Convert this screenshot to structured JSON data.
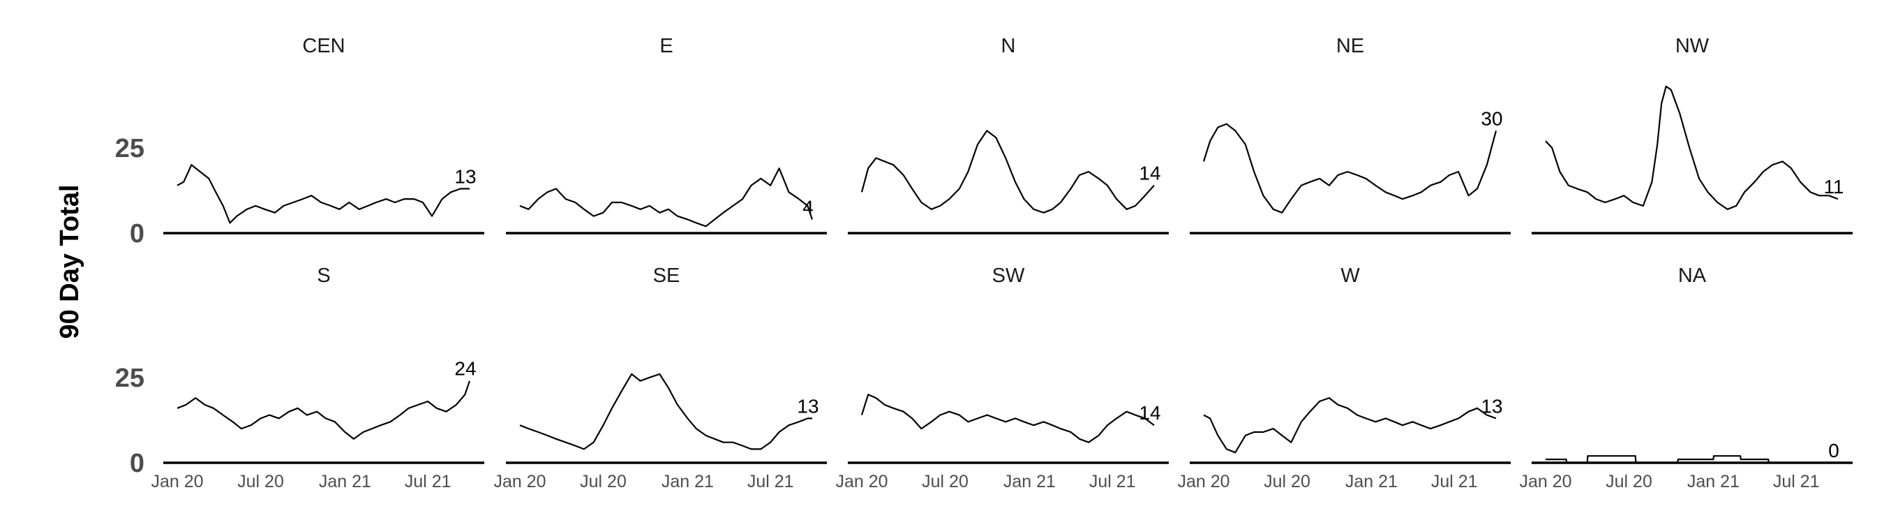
{
  "chart_data": {
    "type": "line",
    "ylabel": "90 Day Total",
    "ylim": [
      0,
      45
    ],
    "yticks": [
      0,
      25
    ],
    "xlim": [
      "2020-01-01",
      "2021-11-01"
    ],
    "xticks": [
      "2020-01-01",
      "2020-07-01",
      "2021-01-01",
      "2021-07-01"
    ],
    "xtick_labels": [
      "Jan 20",
      "Jul 20",
      "Jan 21",
      "Jul 21"
    ],
    "grid": false,
    "colors": {
      "line": "#000000",
      "text": "#4d4d4d"
    },
    "panels": [
      {
        "name": "CEN",
        "end_label": "13",
        "x": [
          "2020-01-01",
          "2020-01-15",
          "2020-02-01",
          "2020-02-20",
          "2020-03-10",
          "2020-03-25",
          "2020-04-10",
          "2020-04-25",
          "2020-05-10",
          "2020-06-01",
          "2020-06-20",
          "2020-07-10",
          "2020-08-01",
          "2020-08-20",
          "2020-09-10",
          "2020-10-01",
          "2020-10-20",
          "2020-11-10",
          "2020-12-01",
          "2020-12-20",
          "2021-01-10",
          "2021-02-01",
          "2021-02-20",
          "2021-03-10",
          "2021-04-01",
          "2021-04-20",
          "2021-05-10",
          "2021-06-01",
          "2021-06-20",
          "2021-07-10",
          "2021-08-01",
          "2021-08-20",
          "2021-09-10",
          "2021-09-30"
        ],
        "y": [
          14,
          15,
          20,
          18,
          16,
          12,
          8,
          3,
          5,
          7,
          8,
          7,
          6,
          8,
          9,
          10,
          11,
          9,
          8,
          7,
          9,
          7,
          8,
          9,
          10,
          9,
          10,
          10,
          9,
          5,
          10,
          12,
          13,
          13
        ]
      },
      {
        "name": "E",
        "end_label": "4",
        "x": [
          "2020-01-01",
          "2020-01-20",
          "2020-02-10",
          "2020-03-01",
          "2020-03-20",
          "2020-04-10",
          "2020-05-01",
          "2020-05-20",
          "2020-06-10",
          "2020-07-01",
          "2020-07-20",
          "2020-08-10",
          "2020-09-01",
          "2020-09-20",
          "2020-10-10",
          "2020-11-01",
          "2020-11-20",
          "2020-12-10",
          "2021-01-01",
          "2021-01-20",
          "2021-02-10",
          "2021-03-01",
          "2021-03-20",
          "2021-04-10",
          "2021-05-01",
          "2021-05-20",
          "2021-06-10",
          "2021-07-01",
          "2021-07-20",
          "2021-08-10",
          "2021-09-01",
          "2021-09-20",
          "2021-09-30"
        ],
        "y": [
          8,
          7,
          10,
          12,
          13,
          10,
          9,
          7,
          5,
          6,
          9,
          9,
          8,
          7,
          8,
          6,
          7,
          5,
          4,
          3,
          2,
          4,
          6,
          8,
          10,
          14,
          16,
          14,
          19,
          12,
          10,
          8,
          4
        ]
      },
      {
        "name": "N",
        "end_label": "14",
        "x": [
          "2020-01-01",
          "2020-01-15",
          "2020-02-01",
          "2020-02-20",
          "2020-03-10",
          "2020-04-01",
          "2020-04-20",
          "2020-05-10",
          "2020-06-01",
          "2020-06-20",
          "2020-07-10",
          "2020-08-01",
          "2020-08-20",
          "2020-09-10",
          "2020-09-30",
          "2020-10-20",
          "2020-11-10",
          "2020-12-01",
          "2020-12-20",
          "2021-01-10",
          "2021-02-01",
          "2021-02-20",
          "2021-03-10",
          "2021-04-01",
          "2021-04-20",
          "2021-05-10",
          "2021-06-01",
          "2021-06-20",
          "2021-07-10",
          "2021-08-01",
          "2021-08-20",
          "2021-09-10",
          "2021-09-30"
        ],
        "y": [
          12,
          19,
          22,
          21,
          20,
          17,
          13,
          9,
          7,
          8,
          10,
          13,
          18,
          26,
          30,
          28,
          22,
          15,
          10,
          7,
          6,
          7,
          9,
          13,
          17,
          18,
          16,
          14,
          10,
          7,
          8,
          11,
          14
        ]
      },
      {
        "name": "NE",
        "end_label": "30",
        "x": [
          "2020-01-01",
          "2020-01-15",
          "2020-02-01",
          "2020-02-20",
          "2020-03-10",
          "2020-04-01",
          "2020-04-20",
          "2020-05-10",
          "2020-06-01",
          "2020-06-20",
          "2020-07-10",
          "2020-08-01",
          "2020-08-20",
          "2020-09-10",
          "2020-10-01",
          "2020-10-20",
          "2020-11-10",
          "2020-12-01",
          "2020-12-20",
          "2021-01-10",
          "2021-02-01",
          "2021-02-20",
          "2021-03-10",
          "2021-04-01",
          "2021-04-20",
          "2021-05-10",
          "2021-06-01",
          "2021-06-20",
          "2021-07-10",
          "2021-08-01",
          "2021-08-20",
          "2021-09-10",
          "2021-09-30"
        ],
        "y": [
          21,
          27,
          31,
          32,
          30,
          26,
          18,
          11,
          7,
          6,
          10,
          14,
          15,
          16,
          14,
          17,
          18,
          17,
          16,
          14,
          12,
          11,
          10,
          11,
          12,
          14,
          15,
          17,
          18,
          11,
          13,
          20,
          30
        ]
      },
      {
        "name": "NW",
        "end_label": "11",
        "x": [
          "2020-01-01",
          "2020-01-15",
          "2020-02-01",
          "2020-02-20",
          "2020-03-10",
          "2020-04-01",
          "2020-04-20",
          "2020-05-10",
          "2020-06-01",
          "2020-06-20",
          "2020-07-10",
          "2020-08-01",
          "2020-08-20",
          "2020-09-01",
          "2020-09-10",
          "2020-09-20",
          "2020-10-01",
          "2020-10-20",
          "2020-11-10",
          "2020-12-01",
          "2020-12-20",
          "2021-01-10",
          "2021-02-01",
          "2021-02-20",
          "2021-03-10",
          "2021-04-01",
          "2021-04-20",
          "2021-05-10",
          "2021-06-01",
          "2021-06-20",
          "2021-07-10",
          "2021-08-01",
          "2021-08-20",
          "2021-09-10",
          "2021-09-30"
        ],
        "y": [
          27,
          25,
          18,
          14,
          13,
          12,
          10,
          9,
          10,
          11,
          9,
          8,
          15,
          26,
          38,
          43,
          42,
          35,
          25,
          16,
          12,
          9,
          7,
          8,
          12,
          15,
          18,
          20,
          21,
          19,
          15,
          12,
          11,
          11,
          10
        ]
      },
      {
        "name": "S",
        "end_label": "24",
        "x": [
          "2020-01-01",
          "2020-01-20",
          "2020-02-10",
          "2020-03-01",
          "2020-03-20",
          "2020-04-10",
          "2020-05-01",
          "2020-05-20",
          "2020-06-10",
          "2020-07-01",
          "2020-07-20",
          "2020-08-10",
          "2020-09-01",
          "2020-09-20",
          "2020-10-10",
          "2020-11-01",
          "2020-11-20",
          "2020-12-10",
          "2021-01-01",
          "2021-01-20",
          "2021-02-10",
          "2021-03-01",
          "2021-03-20",
          "2021-04-10",
          "2021-05-01",
          "2021-05-20",
          "2021-06-10",
          "2021-07-01",
          "2021-07-20",
          "2021-08-10",
          "2021-09-01",
          "2021-09-20",
          "2021-09-30"
        ],
        "y": [
          16,
          17,
          19,
          17,
          16,
          14,
          12,
          10,
          11,
          13,
          14,
          13,
          15,
          16,
          14,
          15,
          13,
          12,
          9,
          7,
          9,
          10,
          11,
          12,
          14,
          16,
          17,
          18,
          16,
          15,
          17,
          20,
          24
        ]
      },
      {
        "name": "SE",
        "end_label": "13",
        "x": [
          "2020-01-01",
          "2020-01-20",
          "2020-02-10",
          "2020-03-01",
          "2020-03-20",
          "2020-04-10",
          "2020-05-01",
          "2020-05-20",
          "2020-06-10",
          "2020-07-01",
          "2020-07-20",
          "2020-08-10",
          "2020-09-01",
          "2020-09-20",
          "2020-10-10",
          "2020-11-01",
          "2020-11-20",
          "2020-12-10",
          "2021-01-01",
          "2021-01-20",
          "2021-02-10",
          "2021-03-01",
          "2021-03-20",
          "2021-04-10",
          "2021-05-01",
          "2021-05-20",
          "2021-06-10",
          "2021-07-01",
          "2021-07-20",
          "2021-08-10",
          "2021-09-01",
          "2021-09-20",
          "2021-09-30"
        ],
        "y": [
          11,
          10,
          9,
          8,
          7,
          6,
          5,
          4,
          6,
          11,
          16,
          21,
          26,
          24,
          25,
          26,
          22,
          17,
          13,
          10,
          8,
          7,
          6,
          6,
          5,
          4,
          4,
          6,
          9,
          11,
          12,
          13,
          13
        ]
      },
      {
        "name": "SW",
        "end_label": "14",
        "x": [
          "2020-01-01",
          "2020-01-15",
          "2020-02-01",
          "2020-02-20",
          "2020-03-10",
          "2020-04-01",
          "2020-04-20",
          "2020-05-10",
          "2020-06-01",
          "2020-06-20",
          "2020-07-10",
          "2020-08-01",
          "2020-08-20",
          "2020-09-10",
          "2020-10-01",
          "2020-10-20",
          "2020-11-10",
          "2020-12-01",
          "2020-12-20",
          "2021-01-10",
          "2021-02-01",
          "2021-02-20",
          "2021-03-10",
          "2021-04-01",
          "2021-04-20",
          "2021-05-10",
          "2021-06-01",
          "2021-06-20",
          "2021-07-10",
          "2021-08-01",
          "2021-08-20",
          "2021-09-10",
          "2021-09-30"
        ],
        "y": [
          14,
          20,
          19,
          17,
          16,
          15,
          13,
          10,
          12,
          14,
          15,
          14,
          12,
          13,
          14,
          13,
          12,
          13,
          12,
          11,
          12,
          11,
          10,
          9,
          7,
          6,
          8,
          11,
          13,
          15,
          14,
          13,
          11
        ]
      },
      {
        "name": "W",
        "end_label": "13",
        "x": [
          "2020-01-01",
          "2020-01-15",
          "2020-02-01",
          "2020-02-20",
          "2020-03-10",
          "2020-04-01",
          "2020-04-20",
          "2020-05-10",
          "2020-06-01",
          "2020-06-20",
          "2020-07-10",
          "2020-08-01",
          "2020-08-20",
          "2020-09-10",
          "2020-10-01",
          "2020-10-20",
          "2020-11-10",
          "2020-12-01",
          "2020-12-20",
          "2021-01-10",
          "2021-02-01",
          "2021-02-20",
          "2021-03-10",
          "2021-04-01",
          "2021-04-20",
          "2021-05-10",
          "2021-06-01",
          "2021-06-20",
          "2021-07-10",
          "2021-08-01",
          "2021-08-20",
          "2021-09-10",
          "2021-09-30"
        ],
        "y": [
          14,
          13,
          8,
          4,
          3,
          8,
          9,
          9,
          10,
          8,
          6,
          12,
          15,
          18,
          19,
          17,
          16,
          14,
          13,
          12,
          13,
          12,
          11,
          12,
          11,
          10,
          11,
          12,
          13,
          15,
          16,
          14,
          13
        ]
      },
      {
        "name": "NA",
        "end_label": "0",
        "x": [
          "2020-01-01",
          "2020-02-15",
          "2020-02-16",
          "2020-04-01",
          "2020-04-02",
          "2020-07-15",
          "2020-07-16",
          "2020-10-15",
          "2020-10-16",
          "2020-12-15",
          "2020-12-16",
          "2021-01-01",
          "2021-01-02",
          "2021-03-01",
          "2021-03-02",
          "2021-05-01",
          "2021-05-02",
          "2021-06-01",
          "2021-06-02",
          "2021-09-30"
        ],
        "y": [
          1,
          1,
          0,
          0,
          2,
          2,
          0,
          0,
          1,
          1,
          1,
          1,
          2,
          2,
          1,
          1,
          0,
          0,
          0,
          0
        ]
      }
    ]
  }
}
